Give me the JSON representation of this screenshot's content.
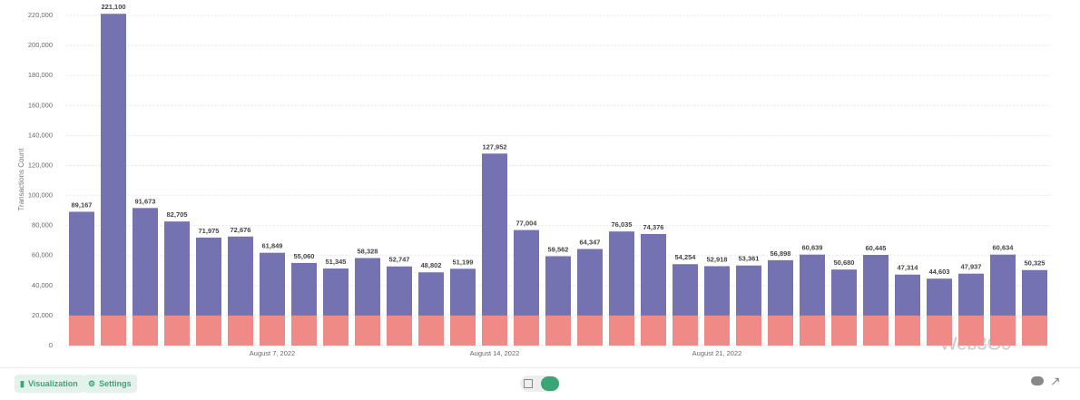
{
  "chart_data": {
    "type": "stacked-bar",
    "y_label": "Transactions Count",
    "categories": [
      null,
      null,
      null,
      null,
      null,
      null,
      "August 7, 2022",
      null,
      null,
      null,
      null,
      null,
      null,
      "August 14, 2022",
      null,
      null,
      null,
      null,
      null,
      null,
      "August 21, 2022",
      null,
      null,
      null,
      null,
      null,
      null,
      null,
      null,
      null,
      null
    ],
    "series": [
      {
        "color": "#ef8a87",
        "values": [
          20000,
          20000,
          20000,
          20000,
          20000,
          20000,
          20000,
          20000,
          20000,
          20000,
          20000,
          20000,
          20000,
          20000,
          20000,
          20000,
          20000,
          20000,
          20000,
          20000,
          20000,
          20000,
          20000,
          20000,
          20000,
          20000,
          20000,
          20000,
          20000,
          20000,
          20000
        ]
      },
      {
        "color": "#7472b0",
        "values": [
          69167,
          201100,
          71673,
          62705,
          51975,
          52676,
          41849,
          35060,
          31345,
          38328,
          32747,
          28802,
          31199,
          107952,
          57004,
          39562,
          44347,
          56035,
          54376,
          34254,
          32918,
          33361,
          36898,
          40639,
          30680,
          40445,
          27314,
          24603,
          27937,
          40634,
          30325
        ]
      }
    ],
    "totals": [
      {
        "value": 89167,
        "label": "89,167"
      },
      {
        "value": 221100,
        "label": "221,100"
      },
      {
        "value": 91673,
        "label": "91,673"
      },
      {
        "value": 82705,
        "label": "82,705"
      },
      {
        "value": 71975,
        "label": "71,975"
      },
      {
        "value": 72676,
        "label": "72,676"
      },
      {
        "value": 61849,
        "label": "61,849"
      },
      {
        "value": 55060,
        "label": "55,060"
      },
      {
        "value": 51345,
        "label": "51,345"
      },
      {
        "value": 58328,
        "label": "58,328"
      },
      {
        "value": 52747,
        "label": "52,747"
      },
      {
        "value": 48802,
        "label": "48,802"
      },
      {
        "value": 51199,
        "label": "51,199"
      },
      {
        "value": 127952,
        "label": "127,952"
      },
      {
        "value": 77004,
        "label": "77,004"
      },
      {
        "value": 59562,
        "label": "59,562"
      },
      {
        "value": 64347,
        "label": "64,347"
      },
      {
        "value": 76035,
        "label": "76,035"
      },
      {
        "value": 74376,
        "label": "74,376"
      },
      {
        "value": 54254,
        "label": "54,254"
      },
      {
        "value": 52918,
        "label": "52,918"
      },
      {
        "value": 53361,
        "label": "53,361"
      },
      {
        "value": 56898,
        "label": "56,898"
      },
      {
        "value": 60639,
        "label": "60,639"
      },
      {
        "value": 50680,
        "label": "50,680"
      },
      {
        "value": 60445,
        "label": "60,445"
      },
      {
        "value": 47314,
        "label": "47,314"
      },
      {
        "value": 44603,
        "label": "44,603"
      },
      {
        "value": 47937,
        "label": "47,937"
      },
      {
        "value": 60634,
        "label": "60,634"
      },
      {
        "value": 50325,
        "label": "50,325"
      }
    ],
    "ylim": [
      0,
      230000
    ],
    "yticks": [
      0,
      {
        "value": 20000,
        "label": "20,000"
      },
      {
        "value": 40000,
        "label": "40,000"
      },
      {
        "value": 60000,
        "label": "60,000"
      },
      {
        "value": 80000,
        "label": "80,000"
      },
      {
        "value": 100000,
        "label": "100,000"
      },
      {
        "value": 120000,
        "label": "120,000"
      },
      {
        "value": 140000,
        "label": "140,000"
      },
      {
        "value": 160000,
        "label": "160,000"
      },
      {
        "value": 180000,
        "label": "180,000"
      },
      {
        "value": 200000,
        "label": "200,000"
      },
      {
        "value": 220000,
        "label": "220,000"
      }
    ],
    "grid": true
  },
  "toolbar": {
    "visualization": "Visualization",
    "settings": "Settings"
  },
  "watermark": "Web3Go"
}
